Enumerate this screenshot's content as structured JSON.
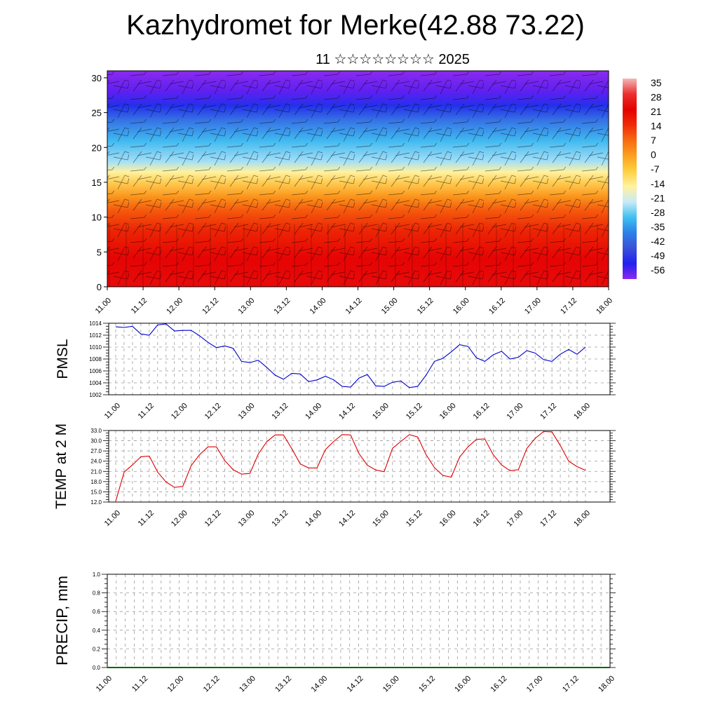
{
  "title": "Kazhydromet for Merke(42.88 73.22)",
  "subtitle": "11 ☆☆☆☆☆☆☆☆ 2025",
  "colorbar": {
    "labels": [
      "35",
      "28",
      "21",
      "14",
      "7",
      "0",
      "-7",
      "-14",
      "-21",
      "-28",
      "-35",
      "-42",
      "-49",
      "-56"
    ],
    "stops": [
      "#f3b8b8",
      "#ec2f2f",
      "#e40000",
      "#f02a08",
      "#f86a10",
      "#fba020",
      "#ffd040",
      "#fff2a0",
      "#c8eaf8",
      "#40c0f0",
      "#2a80e8",
      "#3a50d8",
      "#2020f0",
      "#8a2aee"
    ]
  },
  "chart_data": [
    {
      "type": "heatmap",
      "name": "cross-section",
      "x_ticks": [
        "11.00",
        "11.12",
        "12.00",
        "12.12",
        "13.00",
        "13.12",
        "14.00",
        "14.12",
        "15.00",
        "15.12",
        "16.00",
        "16.12",
        "17.00",
        "17.12",
        "18.00"
      ],
      "y_ticks": [
        "0",
        "5",
        "10",
        "15",
        "20",
        "25",
        "30"
      ],
      "ylim": [
        0,
        31
      ],
      "zlim": [
        -56,
        35
      ],
      "profile": [
        {
          "y": 0,
          "v": 30
        },
        {
          "y": 4,
          "v": 25
        },
        {
          "y": 8,
          "v": 17
        },
        {
          "y": 11,
          "v": 10
        },
        {
          "y": 13,
          "v": 3
        },
        {
          "y": 15,
          "v": -6
        },
        {
          "y": 16.5,
          "v": -14
        },
        {
          "y": 18,
          "v": -22
        },
        {
          "y": 21,
          "v": -30
        },
        {
          "y": 24,
          "v": -40
        },
        {
          "y": 26,
          "v": -48
        },
        {
          "y": 28,
          "v": -55
        },
        {
          "y": 31,
          "v": -60
        }
      ]
    },
    {
      "type": "line",
      "ylabel": "PMSL",
      "ylim": [
        1002,
        1014
      ],
      "y_ticks": [
        "1002",
        "1004",
        "1006",
        "1008",
        "1010",
        "1012",
        "1014"
      ],
      "x_ticks": [
        "11.00",
        "11.12",
        "12.00",
        "12.12",
        "13.00",
        "13.12",
        "14.00",
        "14.12",
        "15.00",
        "15.12",
        "16.00",
        "16.12",
        "17.00",
        "17.12",
        "18.00"
      ],
      "color": "#0000cc",
      "values": [
        1013.4,
        1013.3,
        1013.5,
        1012.2,
        1012.0,
        1013.7,
        1013.9,
        1012.7,
        1012.8,
        1012.8,
        1011.9,
        1010.8,
        1009.9,
        1010.2,
        1009.8,
        1007.6,
        1007.4,
        1007.8,
        1006.6,
        1005.3,
        1004.6,
        1005.6,
        1005.5,
        1004.2,
        1004.5,
        1005.1,
        1004.5,
        1003.4,
        1003.3,
        1004.8,
        1005.4,
        1003.5,
        1003.4,
        1004.1,
        1004.3,
        1003.2,
        1003.4,
        1005.3,
        1007.6,
        1008.1,
        1009.2,
        1010.4,
        1010.1,
        1008.2,
        1007.6,
        1008.7,
        1009.3,
        1008.0,
        1008.3,
        1009.4,
        1009.0,
        1007.9,
        1007.6,
        1008.8,
        1009.6,
        1008.8,
        1010.0
      ]
    },
    {
      "type": "line",
      "ylabel": "TEMP at 2 M",
      "ylim": [
        12,
        33
      ],
      "y_ticks": [
        "12.0",
        "15.0",
        "18.0",
        "21.0",
        "24.0",
        "27.0",
        "30.0",
        "33.0"
      ],
      "x_ticks": [
        "11.00",
        "11.12",
        "12.00",
        "12.12",
        "13.00",
        "13.12",
        "14.00",
        "14.12",
        "15.00",
        "15.12",
        "16.00",
        "16.12",
        "17.00",
        "17.12",
        "18.00"
      ],
      "color": "#dd0000",
      "values": [
        12.2,
        20.8,
        22.9,
        25.3,
        25.5,
        20.8,
        17.9,
        16.3,
        16.6,
        22.7,
        25.9,
        28.2,
        28.2,
        24.2,
        21.5,
        20.2,
        20.4,
        26.1,
        29.7,
        31.7,
        31.7,
        27.6,
        23.2,
        22.0,
        22.0,
        27.4,
        29.8,
        31.8,
        31.7,
        26.2,
        22.8,
        21.4,
        20.9,
        27.8,
        29.8,
        31.8,
        31.1,
        25.9,
        22.1,
        19.8,
        19.3,
        25.2,
        28.2,
        30.4,
        30.5,
        25.9,
        22.9,
        21.2,
        21.5,
        27.7,
        30.7,
        32.7,
        32.6,
        28.6,
        24.0,
        22.4,
        21.3
      ]
    },
    {
      "type": "line",
      "ylabel": "PRECIP, mm",
      "ylim": [
        0,
        1
      ],
      "y_ticks": [
        "0.0",
        "0.2",
        "0.4",
        "0.6",
        "0.8",
        "1.0"
      ],
      "x_ticks": [
        "11.00",
        "11.12",
        "12.00",
        "12.12",
        "13.00",
        "13.12",
        "14.00",
        "14.12",
        "15.00",
        "15.12",
        "16.00",
        "16.12",
        "17.00",
        "17.12",
        "18.00"
      ],
      "color": "#006600",
      "values": [
        0,
        0,
        0,
        0,
        0,
        0,
        0,
        0,
        0,
        0,
        0,
        0,
        0,
        0,
        0,
        0,
        0,
        0,
        0,
        0,
        0,
        0,
        0,
        0,
        0,
        0,
        0,
        0,
        0,
        0,
        0,
        0,
        0,
        0,
        0,
        0,
        0,
        0,
        0,
        0,
        0,
        0,
        0,
        0,
        0,
        0,
        0,
        0,
        0,
        0,
        0,
        0,
        0,
        0,
        0,
        0,
        0
      ]
    }
  ]
}
